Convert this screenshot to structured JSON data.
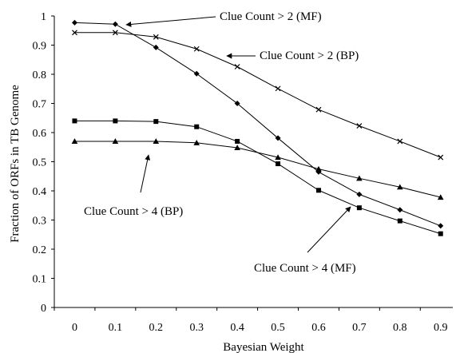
{
  "chart_data": {
    "type": "line",
    "xlabel": "Bayesian Weight",
    "ylabel": "Fraction of ORFs in TB Genome",
    "xlim": [
      -0.05,
      0.93
    ],
    "ylim": [
      0,
      1
    ],
    "x_ticks": [
      "0",
      "0.1",
      "0.2",
      "0.3",
      "0.4",
      "0.5",
      "0.6",
      "0.7",
      "0.8",
      "0.9"
    ],
    "y_ticks": [
      "0",
      "0.1",
      "0.2",
      "0.3",
      "0.4",
      "0.5",
      "0.6",
      "0.7",
      "0.8",
      "0.9",
      "1"
    ],
    "x": [
      0,
      0.1,
      0.2,
      0.3,
      0.4,
      0.5,
      0.6,
      0.7,
      0.8,
      0.9
    ],
    "grid": false,
    "series": [
      {
        "name": "Clue Count > 2 (MF)",
        "marker": "diamond",
        "values": [
          0.977,
          0.972,
          0.892,
          0.802,
          0.7,
          0.581,
          0.465,
          0.388,
          0.335,
          0.28
        ]
      },
      {
        "name": "Clue Count > 2 (BP)",
        "marker": "x",
        "values": [
          0.943,
          0.943,
          0.928,
          0.887,
          0.826,
          0.751,
          0.679,
          0.623,
          0.57,
          0.515
        ]
      },
      {
        "name": "Clue Count > 4 (MF)",
        "marker": "square",
        "values": [
          0.64,
          0.64,
          0.638,
          0.62,
          0.57,
          0.493,
          0.402,
          0.342,
          0.297,
          0.253
        ]
      },
      {
        "name": "Clue Count > 4 (BP)",
        "marker": "triangle",
        "values": [
          0.57,
          0.57,
          0.57,
          0.565,
          0.548,
          0.515,
          0.475,
          0.443,
          0.413,
          0.378
        ]
      }
    ],
    "annotations": [
      {
        "text": "Clue Count > 2 (MF)",
        "series": 0,
        "point": 1
      },
      {
        "text": "Clue Count > 2 (BP)",
        "series": 1,
        "point": 3
      },
      {
        "text": "Clue Count > 4 (BP)",
        "series": 3,
        "point": 2
      },
      {
        "text": "Clue Count > 4 (MF)",
        "series": 2,
        "point": 6
      }
    ]
  }
}
